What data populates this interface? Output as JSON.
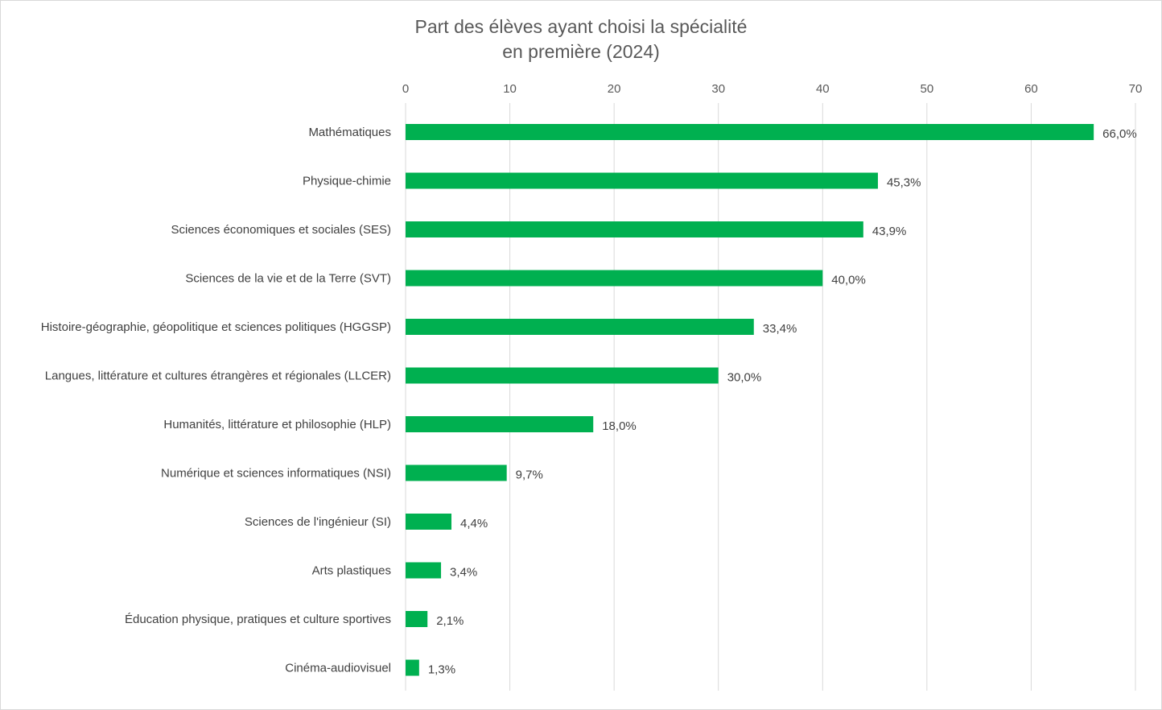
{
  "chart_data": {
    "type": "bar",
    "orientation": "horizontal",
    "title_lines": [
      "Part des élèves ayant choisi la spécialité",
      "en première (2024)"
    ],
    "categories": [
      "Mathématiques",
      "Physique-chimie",
      "Sciences économiques et sociales (SES)",
      "Sciences de la vie et de la Terre (SVT)",
      "Histoire-géographie, géopolitique et sciences politiques (HGGSP)",
      "Langues, littérature et cultures étrangères et régionales (LLCER)",
      "Humanités, littérature et philosophie (HLP)",
      "Numérique et sciences informatiques (NSI)",
      "Sciences de l'ingénieur (SI)",
      "Arts plastiques",
      "Éducation physique, pratiques et culture sportives",
      "Cinéma-audiovisuel"
    ],
    "values": [
      66.0,
      45.3,
      43.9,
      40.0,
      33.4,
      30.0,
      18.0,
      9.7,
      4.4,
      3.4,
      2.1,
      1.3
    ],
    "data_labels": [
      "66,0%",
      "45,3%",
      "43,9%",
      "40,0%",
      "33,4%",
      "30,0%",
      "18,0%",
      "9,7%",
      "4,4%",
      "3,4%",
      "2,1%",
      "1,3%"
    ],
    "x_ticks": [
      "0",
      "10",
      "20",
      "30",
      "40",
      "50",
      "60",
      "70"
    ],
    "xlim": [
      0,
      70
    ],
    "xaxis_position": "top",
    "grid": true,
    "legend": false,
    "bar_color": "#00b050",
    "grid_color": "#d9d9d9"
  }
}
